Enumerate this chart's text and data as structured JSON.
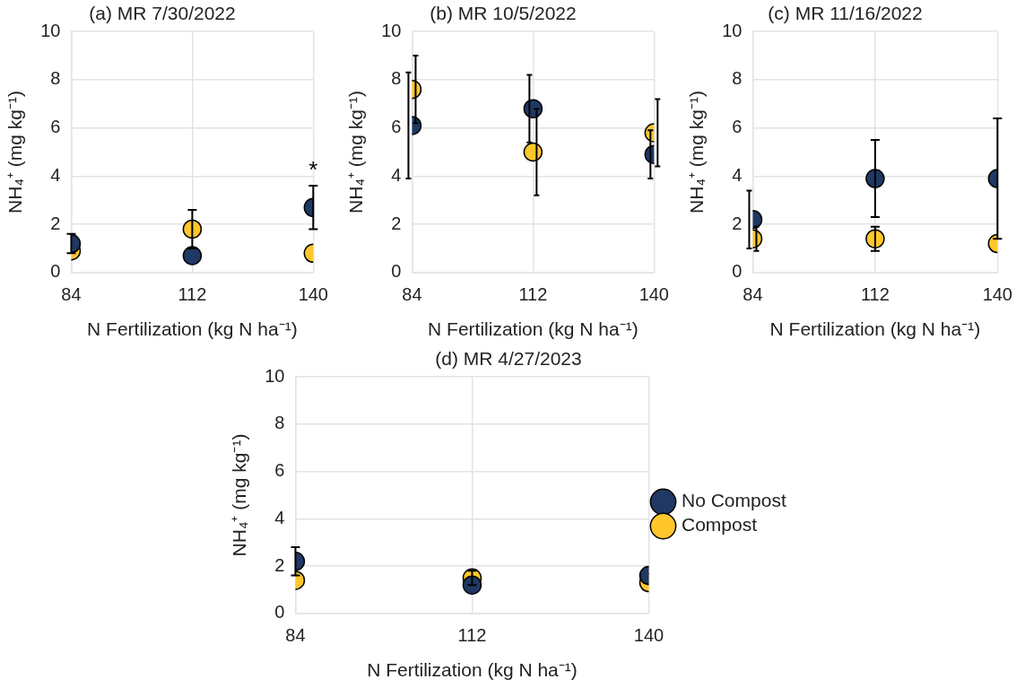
{
  "chart_data": [
    {
      "type": "scatter",
      "title": "(a) MR 7/30/2022",
      "xlabel": "N Fertilization (kg N ha⁻¹)",
      "ylabel": "NH₄⁺ (mg kg⁻¹)",
      "x": [
        84,
        112,
        140
      ],
      "xlim": [
        84,
        140
      ],
      "xticks": [
        84,
        112,
        140
      ],
      "ylim": [
        0,
        10
      ],
      "yticks": [
        0,
        2,
        4,
        6,
        8,
        10
      ],
      "grid": true,
      "marker": "circle",
      "legend": false,
      "series": [
        {
          "color": "#1f3864",
          "values": [
            1.2,
            0.7,
            2.7
          ],
          "errors": [
            0.4,
            null,
            0.9
          ]
        },
        {
          "color": "#ffc72c",
          "values": [
            0.9,
            1.8,
            0.8
          ],
          "errors": [
            null,
            0.8,
            null
          ]
        }
      ],
      "annotations": [
        "*"
      ]
    },
    {
      "type": "scatter",
      "title": "(b) MR 10/5/2022",
      "xlabel": "N Fertilization (kg N ha⁻¹)",
      "ylabel": "NH₄⁺ (mg kg⁻¹)",
      "x": [
        84,
        112,
        140
      ],
      "xlim": [
        84,
        140
      ],
      "xticks": [
        84,
        112,
        140
      ],
      "ylim": [
        0,
        10
      ],
      "yticks": [
        0,
        2,
        4,
        6,
        8,
        10
      ],
      "grid": true,
      "marker": "circle",
      "legend": false,
      "series": [
        {
          "color": "#1f3864",
          "values": [
            6.1,
            6.8,
            4.9
          ],
          "errors": [
            2.2,
            1.4,
            1.0
          ]
        },
        {
          "color": "#ffc72c",
          "values": [
            7.6,
            5.0,
            5.8
          ],
          "errors": [
            1.4,
            1.8,
            1.4
          ]
        }
      ]
    },
    {
      "type": "scatter",
      "title": "(c) MR 11/16/2022",
      "xlabel": "N Fertilization (kg N ha⁻¹)",
      "ylabel": "NH₄⁺ (mg kg⁻¹)",
      "x": [
        84,
        112,
        140
      ],
      "xlim": [
        84,
        140
      ],
      "xticks": [
        84,
        112,
        140
      ],
      "ylim": [
        0,
        10
      ],
      "yticks": [
        0,
        2,
        4,
        6,
        8,
        10
      ],
      "grid": true,
      "marker": "circle",
      "legend": false,
      "series": [
        {
          "color": "#1f3864",
          "values": [
            2.2,
            3.9,
            3.9
          ],
          "errors": [
            1.2,
            1.6,
            2.5
          ]
        },
        {
          "color": "#ffc72c",
          "values": [
            1.4,
            1.4,
            1.2
          ],
          "errors": [
            0.5,
            0.5,
            null
          ]
        }
      ]
    },
    {
      "type": "scatter",
      "title": "(d) MR 4/27/2023",
      "xlabel": "N Fertilization (kg N ha⁻¹)",
      "ylabel": "NH₄⁺ (mg kg⁻¹)",
      "x": [
        84,
        112,
        140
      ],
      "xlim": [
        84,
        140
      ],
      "xticks": [
        84,
        112,
        140
      ],
      "ylim": [
        0,
        10
      ],
      "yticks": [
        0,
        2,
        4,
        6,
        8,
        10
      ],
      "grid": true,
      "marker": "circle",
      "legend": "right",
      "series": [
        {
          "name": "No Compost",
          "color": "#1f3864",
          "values": [
            2.2,
            1.2,
            1.6
          ],
          "errors": [
            0.6,
            null,
            null
          ]
        },
        {
          "name": "Compost",
          "color": "#ffc72c",
          "values": [
            1.4,
            1.5,
            1.3
          ],
          "errors": [
            null,
            0.3,
            null
          ]
        }
      ]
    }
  ]
}
